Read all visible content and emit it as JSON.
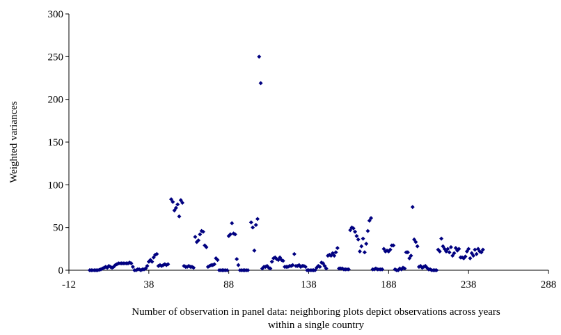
{
  "chart_data": {
    "type": "scatter",
    "title": "",
    "xlabel_line1": "Number of observation in panel data: neighboring plots depict observations across years",
    "xlabel_line2": "within a single country",
    "ylabel": "Weighted variances",
    "xlim": [
      -12,
      288
    ],
    "ylim": [
      0,
      300
    ],
    "xticks": [
      -12,
      38,
      88,
      138,
      188,
      238,
      288
    ],
    "yticks": [
      0,
      50,
      100,
      150,
      200,
      250,
      300
    ],
    "marker_color": "#000080",
    "grid": false,
    "legend": "none",
    "series": [
      {
        "points": [
          [
            1,
            0
          ],
          [
            2,
            0
          ],
          [
            3,
            0
          ],
          [
            4,
            0
          ],
          [
            5,
            0
          ],
          [
            6,
            0
          ],
          [
            7,
            0.5
          ],
          [
            8,
            1
          ],
          [
            9,
            2
          ],
          [
            10,
            3
          ],
          [
            11,
            4
          ],
          [
            12,
            3
          ],
          [
            13,
            5
          ],
          [
            14,
            4
          ],
          [
            15,
            3
          ],
          [
            16,
            4
          ],
          [
            17,
            6
          ],
          [
            18,
            7
          ],
          [
            19,
            8
          ],
          [
            20,
            8
          ],
          [
            21,
            8
          ],
          [
            22,
            8
          ],
          [
            23,
            8
          ],
          [
            24,
            8
          ],
          [
            25,
            8
          ],
          [
            26,
            9
          ],
          [
            27,
            8
          ],
          [
            28,
            4
          ],
          [
            29,
            0
          ],
          [
            30,
            0
          ],
          [
            31,
            1
          ],
          [
            32,
            1
          ],
          [
            33,
            0
          ],
          [
            34,
            1
          ],
          [
            35,
            1
          ],
          [
            36,
            2
          ],
          [
            37,
            5
          ],
          [
            38,
            10
          ],
          [
            39,
            12
          ],
          [
            40,
            10
          ],
          [
            41,
            15
          ],
          [
            42,
            18
          ],
          [
            43,
            19
          ],
          [
            44,
            5
          ],
          [
            45,
            6
          ],
          [
            46,
            5
          ],
          [
            47,
            6
          ],
          [
            48,
            7
          ],
          [
            49,
            6
          ],
          [
            50,
            7
          ],
          [
            52,
            83
          ],
          [
            53,
            80
          ],
          [
            54,
            70
          ],
          [
            55,
            73
          ],
          [
            56,
            77
          ],
          [
            57,
            63
          ],
          [
            58,
            82
          ],
          [
            59,
            79
          ],
          [
            60,
            5
          ],
          [
            61,
            4
          ],
          [
            62,
            4
          ],
          [
            63,
            5
          ],
          [
            64,
            4
          ],
          [
            65,
            4
          ],
          [
            66,
            3
          ],
          [
            67,
            39
          ],
          [
            68,
            33
          ],
          [
            69,
            35
          ],
          [
            70,
            42
          ],
          [
            71,
            46
          ],
          [
            72,
            45
          ],
          [
            73,
            29
          ],
          [
            74,
            27
          ],
          [
            75,
            4
          ],
          [
            76,
            5
          ],
          [
            77,
            6
          ],
          [
            78,
            6
          ],
          [
            79,
            7
          ],
          [
            80,
            14
          ],
          [
            81,
            12
          ],
          [
            82,
            0
          ],
          [
            83,
            0
          ],
          [
            84,
            0
          ],
          [
            85,
            0
          ],
          [
            86,
            0
          ],
          [
            87,
            0
          ],
          [
            88,
            40
          ],
          [
            89,
            42
          ],
          [
            90,
            55
          ],
          [
            91,
            43
          ],
          [
            92,
            42
          ],
          [
            93,
            13
          ],
          [
            94,
            6
          ],
          [
            95,
            0
          ],
          [
            96,
            0
          ],
          [
            97,
            0
          ],
          [
            98,
            0
          ],
          [
            99,
            0
          ],
          [
            100,
            0
          ],
          [
            102,
            56
          ],
          [
            103,
            50
          ],
          [
            104,
            23
          ],
          [
            105,
            53
          ],
          [
            106,
            60
          ],
          [
            107,
            250
          ],
          [
            108,
            219
          ],
          [
            109,
            2
          ],
          [
            110,
            4
          ],
          [
            111,
            4
          ],
          [
            112,
            5
          ],
          [
            113,
            3
          ],
          [
            114,
            2
          ],
          [
            115,
            10
          ],
          [
            116,
            14
          ],
          [
            117,
            15
          ],
          [
            118,
            13
          ],
          [
            119,
            12
          ],
          [
            120,
            15
          ],
          [
            121,
            12
          ],
          [
            122,
            11
          ],
          [
            123,
            4
          ],
          [
            124,
            4
          ],
          [
            125,
            4
          ],
          [
            126,
            5
          ],
          [
            127,
            5
          ],
          [
            128,
            6
          ],
          [
            129,
            19
          ],
          [
            130,
            5
          ],
          [
            131,
            5
          ],
          [
            132,
            6
          ],
          [
            133,
            4
          ],
          [
            134,
            5
          ],
          [
            135,
            5
          ],
          [
            136,
            4
          ],
          [
            137,
            0
          ],
          [
            138,
            0
          ],
          [
            139,
            0
          ],
          [
            140,
            0
          ],
          [
            141,
            0
          ],
          [
            142,
            0
          ],
          [
            143,
            3
          ],
          [
            144,
            5
          ],
          [
            145,
            4
          ],
          [
            146,
            9
          ],
          [
            147,
            8
          ],
          [
            148,
            5
          ],
          [
            149,
            2
          ],
          [
            150,
            17
          ],
          [
            151,
            18
          ],
          [
            152,
            17
          ],
          [
            153,
            20
          ],
          [
            154,
            17
          ],
          [
            155,
            21
          ],
          [
            156,
            26
          ],
          [
            157,
            2
          ],
          [
            158,
            2
          ],
          [
            159,
            2
          ],
          [
            160,
            1
          ],
          [
            161,
            1
          ],
          [
            162,
            1
          ],
          [
            163,
            1
          ],
          [
            164,
            47
          ],
          [
            165,
            50
          ],
          [
            166,
            49
          ],
          [
            167,
            45
          ],
          [
            168,
            40
          ],
          [
            169,
            36
          ],
          [
            170,
            22
          ],
          [
            171,
            28
          ],
          [
            172,
            37
          ],
          [
            173,
            21
          ],
          [
            174,
            31
          ],
          [
            175,
            46
          ],
          [
            176,
            58
          ],
          [
            177,
            61
          ],
          [
            178,
            1
          ],
          [
            179,
            1
          ],
          [
            180,
            2
          ],
          [
            181,
            1
          ],
          [
            182,
            1
          ],
          [
            183,
            1
          ],
          [
            184,
            1
          ],
          [
            185,
            25
          ],
          [
            186,
            22
          ],
          [
            187,
            23
          ],
          [
            188,
            22
          ],
          [
            189,
            24
          ],
          [
            190,
            29
          ],
          [
            191,
            29
          ],
          [
            192,
            1
          ],
          [
            193,
            0
          ],
          [
            194,
            0
          ],
          [
            195,
            2
          ],
          [
            196,
            1
          ],
          [
            197,
            3
          ],
          [
            198,
            2
          ],
          [
            199,
            21
          ],
          [
            200,
            21
          ],
          [
            201,
            14
          ],
          [
            202,
            17
          ],
          [
            203,
            74
          ],
          [
            204,
            36
          ],
          [
            205,
            33
          ],
          [
            206,
            28
          ],
          [
            207,
            4
          ],
          [
            208,
            5
          ],
          [
            209,
            3
          ],
          [
            210,
            4
          ],
          [
            211,
            5
          ],
          [
            212,
            3
          ],
          [
            213,
            1
          ],
          [
            214,
            1
          ],
          [
            215,
            0
          ],
          [
            216,
            0
          ],
          [
            217,
            0
          ],
          [
            218,
            0
          ],
          [
            219,
            24
          ],
          [
            220,
            22
          ],
          [
            221,
            37
          ],
          [
            222,
            28
          ],
          [
            223,
            25
          ],
          [
            224,
            22
          ],
          [
            225,
            25
          ],
          [
            226,
            21
          ],
          [
            227,
            27
          ],
          [
            228,
            17
          ],
          [
            229,
            20
          ],
          [
            230,
            26
          ],
          [
            231,
            23
          ],
          [
            232,
            25
          ],
          [
            233,
            15
          ],
          [
            234,
            15
          ],
          [
            235,
            14
          ],
          [
            236,
            16
          ],
          [
            237,
            22
          ],
          [
            238,
            25
          ],
          [
            239,
            14
          ],
          [
            240,
            20
          ],
          [
            241,
            17
          ],
          [
            242,
            24
          ],
          [
            243,
            19
          ],
          [
            244,
            25
          ],
          [
            245,
            22
          ],
          [
            246,
            21
          ],
          [
            247,
            24
          ]
        ]
      }
    ]
  }
}
